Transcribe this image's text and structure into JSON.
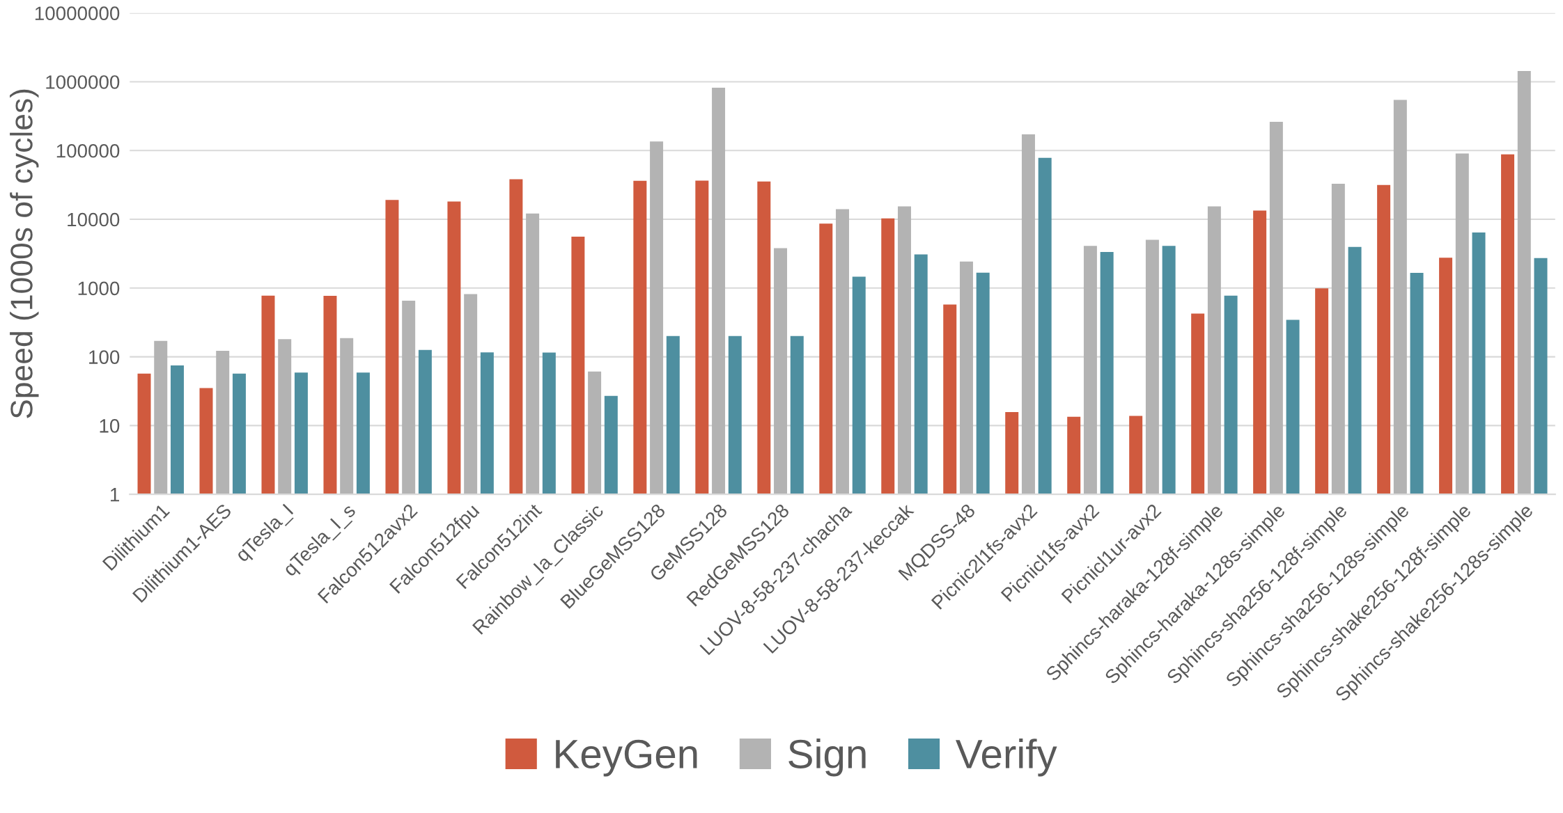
{
  "chart_data": {
    "type": "bar",
    "ylabel": "Speed (1000s of cycles)",
    "log": "y",
    "grid": "y",
    "legend": "bottom",
    "categories": [
      "Dilithium1",
      "Dilithium1-AES",
      "qTesla_I",
      "qTesla_I_s",
      "Falcon512avx2",
      "Falcon512fpu",
      "Falcon512int",
      "Rainbow_Ia_Classic",
      "BlueGeMSS128",
      "GeMSS128",
      "RedGeMSS128",
      "LUOV-8-58-237-chacha",
      "LUOV-8-58-237-keccak",
      "MQDSS-48",
      "Picnic2l1fs-avx2",
      "Picnicl1fs-avx2",
      "Picnicl1ur-avx2",
      "Sphincs-haraka-128f-simple",
      "Sphincs-haraka-128s-simple",
      "Sphincs-sha256-128f-simple",
      "Sphincs-sha256-128s-simple",
      "Sphincs-shake256-128f-simple",
      "Sphincs-shake256-128s-simple"
    ],
    "series": [
      {
        "name": "KeyGen",
        "color": "#d05a3e",
        "values": [
          57,
          35,
          776,
          770,
          19100,
          18100,
          38300,
          5590,
          36300,
          36500,
          35500,
          8670,
          10300,
          575,
          15.7,
          13.4,
          13.8,
          426,
          13400,
          991,
          31600,
          2760,
          88000
        ]
      },
      {
        "name": "Sign",
        "color": "#b3b3b3",
        "values": [
          170,
          122,
          181,
          187,
          654,
          818,
          12100,
          61,
          135000,
          820000,
          3810,
          14000,
          15400,
          2430,
          172000,
          4100,
          5030,
          15400,
          261000,
          32900,
          546000,
          90800,
          1430000
        ]
      },
      {
        "name": "Verify",
        "color": "#4e8fa0",
        "values": [
          75,
          57,
          59,
          59,
          126,
          116,
          115,
          27,
          200,
          200,
          200,
          1460,
          3080,
          1670,
          78200,
          3350,
          4100,
          776,
          344,
          3970,
          1660,
          6430,
          2730
        ]
      }
    ],
    "ylim": [
      1,
      10000000
    ],
    "yticks": [
      1,
      10,
      100,
      1000,
      10000,
      100000,
      1000000,
      10000000
    ]
  }
}
